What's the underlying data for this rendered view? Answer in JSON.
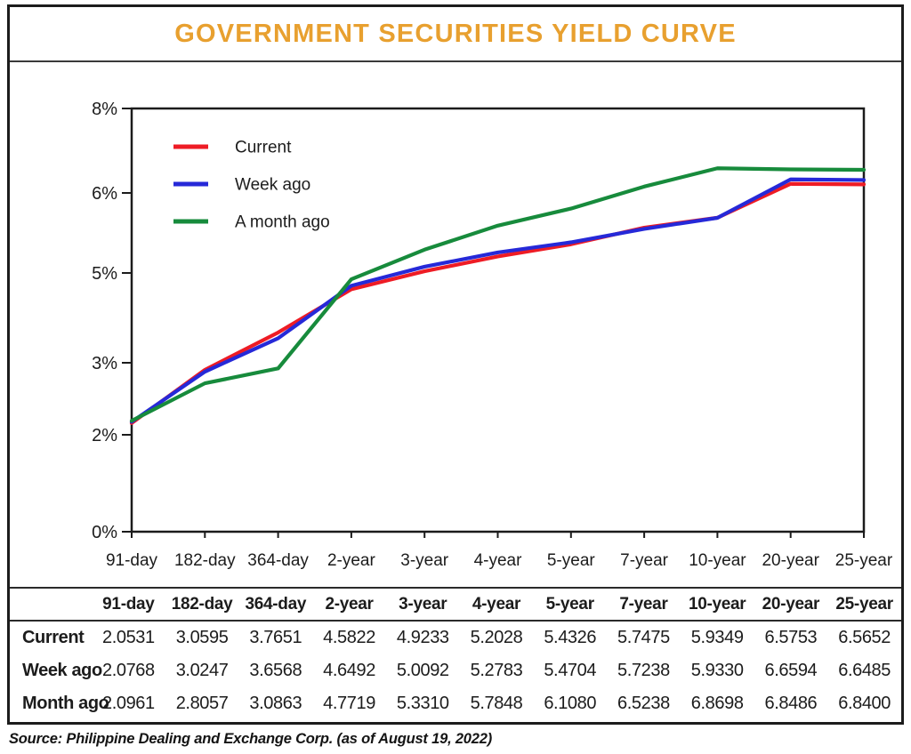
{
  "title": "GOVERNMENT SECURITIES YIELD CURVE",
  "source": "Source: Philippine Dealing and Exchange Corp. (as of August 19, 2022)",
  "colors": {
    "title": "#E8A02F",
    "current": "#EE1C25",
    "week_ago": "#2629D8",
    "month_ago": "#178B3C",
    "axis": "#1b1b1b",
    "text": "#1c1c1c"
  },
  "chart_data": {
    "type": "line",
    "title": "GOVERNMENT SECURITIES YIELD CURVE",
    "categories": [
      "91-day",
      "182-day",
      "364-day",
      "2-year",
      "3-year",
      "4-year",
      "5-year",
      "7-year",
      "10-year",
      "20-year",
      "25-year"
    ],
    "series": [
      {
        "name": "Current",
        "color": "#EE1C25",
        "values": [
          2.0531,
          3.0595,
          3.7651,
          4.5822,
          4.9233,
          5.2028,
          5.4326,
          5.7475,
          5.9349,
          6.5753,
          6.5652
        ]
      },
      {
        "name": "Week ago",
        "color": "#2629D8",
        "values": [
          2.0768,
          3.0247,
          3.6568,
          4.6492,
          5.0092,
          5.2783,
          5.4704,
          5.7238,
          5.933,
          6.6594,
          6.6485
        ]
      },
      {
        "name": "A month ago",
        "color": "#178B3C",
        "values": [
          2.0961,
          2.8057,
          3.0863,
          4.7719,
          5.331,
          5.7848,
          6.108,
          6.5238,
          6.8698,
          6.8486,
          6.84
        ]
      }
    ],
    "ylabel": "",
    "xlabel": "",
    "ylim": [
      0,
      8
    ],
    "y_axis": {
      "tick_labels": [
        "8%",
        "6%",
        "5%",
        "3%",
        "2%",
        "0%"
      ],
      "tick_values": [
        8,
        6,
        5,
        3,
        2,
        0
      ]
    },
    "legend_position": "top-left",
    "grid": false
  },
  "table": {
    "columns": [
      "91-day",
      "182-day",
      "364-day",
      "2-year",
      "3-year",
      "4-year",
      "5-year",
      "7-year",
      "10-year",
      "20-year",
      "25-year"
    ],
    "rows": [
      {
        "label": "Current",
        "values": [
          "2.0531",
          "3.0595",
          "3.7651",
          "4.5822",
          "4.9233",
          "5.2028",
          "5.4326",
          "5.7475",
          "5.9349",
          "6.5753",
          "6.5652"
        ]
      },
      {
        "label": "Week ago",
        "values": [
          "2.0768",
          "3.0247",
          "3.6568",
          "4.6492",
          "5.0092",
          "5.2783",
          "5.4704",
          "5.7238",
          "5.9330",
          "6.6594",
          "6.6485"
        ]
      },
      {
        "label": "Month ago",
        "values": [
          "2.0961",
          "2.8057",
          "3.0863",
          "4.7719",
          "5.3310",
          "5.7848",
          "6.1080",
          "6.5238",
          "6.8698",
          "6.8486",
          "6.8400"
        ]
      }
    ]
  }
}
